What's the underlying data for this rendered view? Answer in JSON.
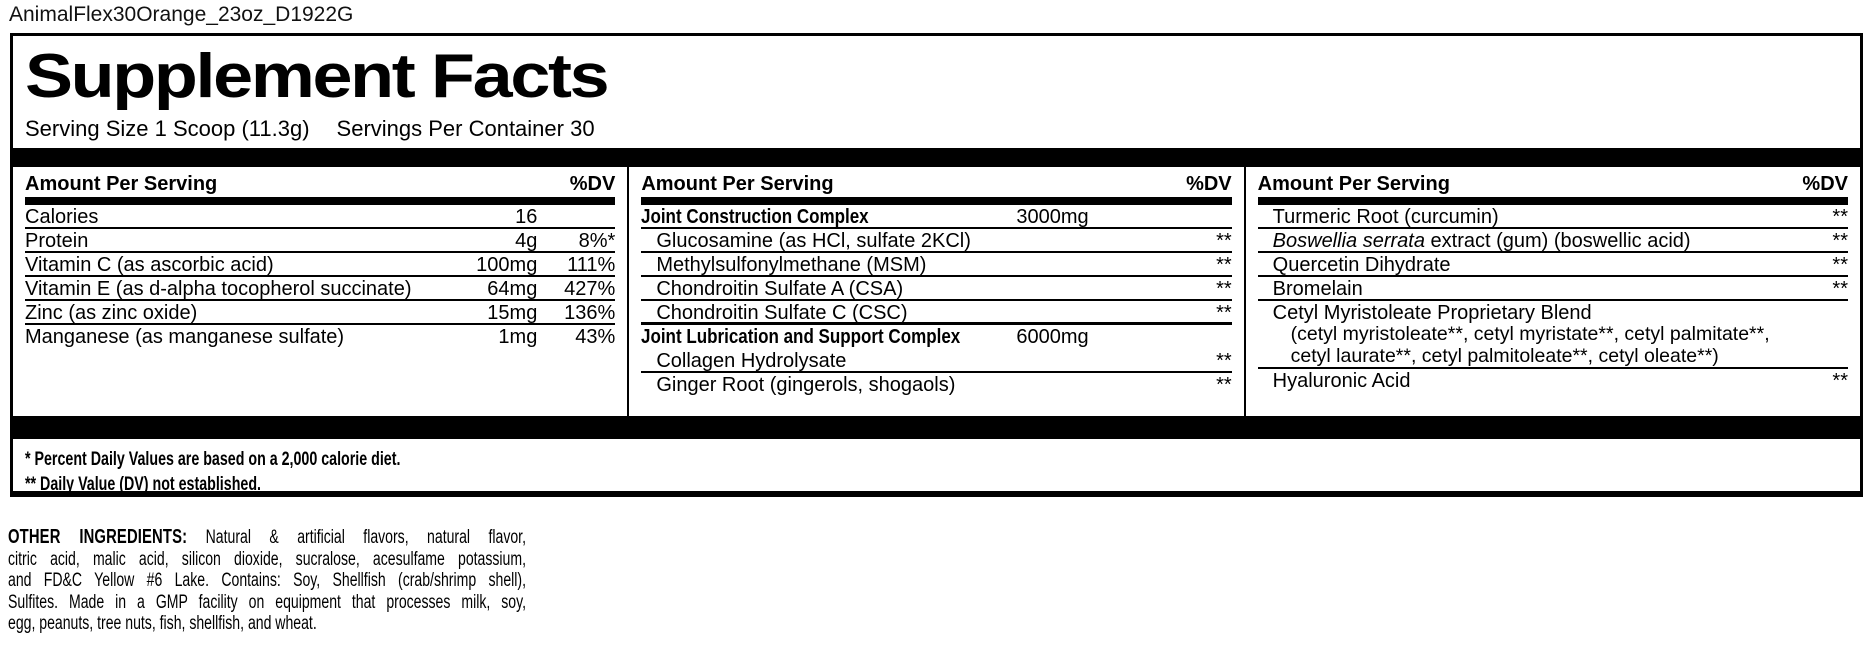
{
  "page": {
    "filename": "AnimalFlex30Orange_23oz_D1922G"
  },
  "label": {
    "title": "Supplement Facts",
    "serving_size": "Serving Size 1 Scoop (11.3g)",
    "servings_per_container": "Servings Per Container 30",
    "column_header": {
      "amount": "Amount Per Serving",
      "dv": "%DV"
    },
    "col1": {
      "rows": [
        {
          "name": "Calories",
          "amount": "16",
          "dv": ""
        },
        {
          "name": "Protein",
          "amount": "4g",
          "dv": "8%*"
        },
        {
          "name": "Vitamin C (as ascorbic acid)",
          "amount": "100mg",
          "dv": "111%"
        },
        {
          "name": "Vitamin E (as d-alpha tocopherol succinate)",
          "amount": "64mg",
          "dv": "427%"
        },
        {
          "name": "Zinc (as zinc oxide)",
          "amount": "15mg",
          "dv": "136%"
        },
        {
          "name": "Manganese (as manganese sulfate)",
          "amount": "1mg",
          "dv": "43%"
        }
      ]
    },
    "col2": {
      "rows": [
        {
          "name": "Joint Construction Complex",
          "amount": "3000mg",
          "dv": ""
        },
        {
          "name": "Glucosamine (as HCl, sulfate 2KCl)",
          "amount": "",
          "dv": "**"
        },
        {
          "name": "Methylsulfonylmethane (MSM)",
          "amount": "",
          "dv": "**"
        },
        {
          "name": "Chondroitin Sulfate A (CSA)",
          "amount": "",
          "dv": "**"
        },
        {
          "name": "Chondroitin Sulfate C (CSC)",
          "amount": "",
          "dv": "**"
        },
        {
          "name": "Joint Lubrication and Support Complex",
          "amount": "6000mg",
          "dv": ""
        },
        {
          "name": "Collagen Hydrolysate",
          "amount": "",
          "dv": "**"
        },
        {
          "name": "Ginger Root (gingerols, shogaols)",
          "amount": "",
          "dv": "**"
        }
      ]
    },
    "col3": {
      "rows": [
        {
          "name": "Turmeric Root (curcumin)",
          "dv": "**"
        },
        {
          "name_italic": "Boswellia serrata",
          "name_rest": " extract (gum) (boswellic acid)",
          "dv": "**"
        },
        {
          "name": "Quercetin Dihydrate",
          "dv": "**"
        },
        {
          "name": "Bromelain",
          "dv": "**"
        },
        {
          "name": "Cetyl Myristoleate Proprietary Blend",
          "sub_line_1": "(cetyl myristoleate**, cetyl myristate**, cetyl palmitate**,",
          "sub_line_2": "cetyl laurate**, cetyl palmitoleate**, cetyl oleate**)",
          "dv": ""
        },
        {
          "name": "Hyaluronic Acid",
          "dv": "**"
        }
      ]
    },
    "footnotes": {
      "line1": "* Percent Daily Values are based on a 2,000 calorie diet.",
      "line2": "** Daily Value (DV) not established."
    }
  },
  "other_ingredients": {
    "label": "OTHER INGREDIENTS:",
    "line1": "Natural & artificial flavors, natural flavor,",
    "line2": "citric acid, malic acid, silicon dioxide, sucralose, acesulfame potassium,",
    "line3": "and FD&C Yellow #6 Lake. Contains: Soy, Shellfish (crab/shrimp shell),",
    "line4": "Sulfites. Made in a GMP facility on equipment that processes milk, soy,",
    "line5": "egg, peanuts, tree nuts, fish, shellfish, and wheat."
  },
  "colors": {
    "ink": "#000000",
    "paper": "#ffffff"
  }
}
